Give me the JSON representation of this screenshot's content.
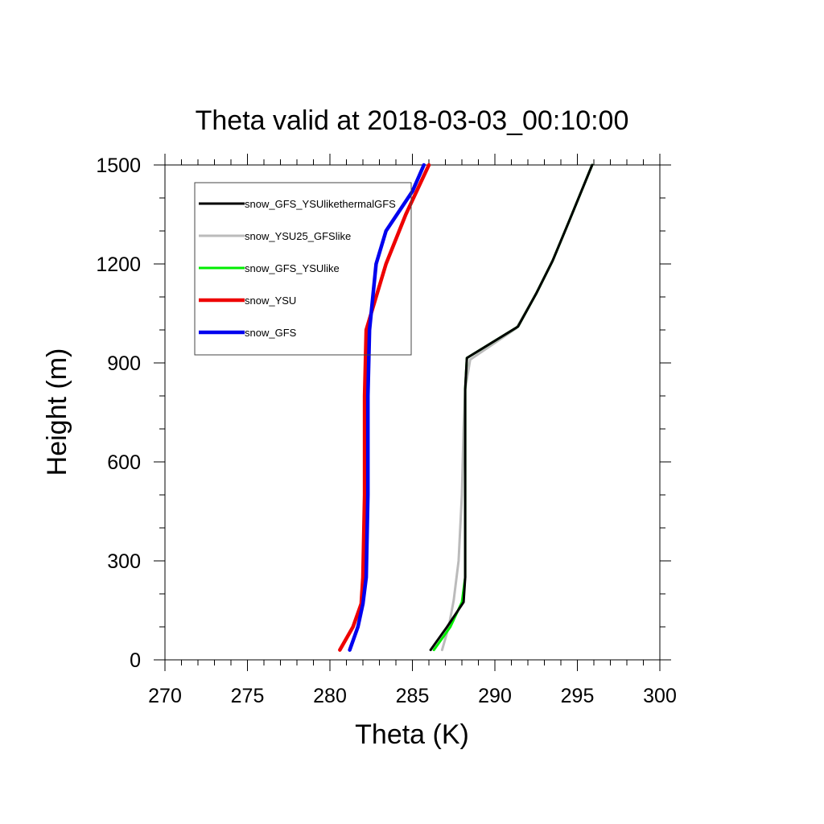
{
  "chart_data": {
    "type": "line",
    "title": "Theta valid at 2018-03-03_00:10:00",
    "xlabel": "Theta (K)",
    "ylabel": "Height (m)",
    "xlim": [
      270,
      300
    ],
    "ylim": [
      0,
      1500
    ],
    "xticks": [
      270,
      275,
      280,
      285,
      290,
      295,
      300
    ],
    "yticks": [
      0,
      300,
      600,
      900,
      1200,
      1500
    ],
    "xtick_labels": [
      "270",
      "275",
      "280",
      "285",
      "290",
      "295",
      "300"
    ],
    "ytick_labels": [
      "0",
      "300",
      "600",
      "900",
      "1200",
      "1500"
    ],
    "grid": false,
    "legend_position": "top-left",
    "series": [
      {
        "name": "snow_GFS_YSUlikethermalGFS",
        "color": "#000000",
        "x": [
          286.1,
          287.1,
          288.1,
          288.2,
          288.2,
          288.2,
          288.3,
          291.4,
          292.5,
          293.5,
          294.5,
          295.9
        ],
        "y": [
          30,
          100,
          175,
          250,
          500,
          820,
          915,
          1010,
          1110,
          1210,
          1330,
          1500
        ]
      },
      {
        "name": "snow_YSU25_GFSlike",
        "color": "#bbbbbb",
        "x": [
          286.8,
          287.2,
          287.5,
          287.8,
          288.0,
          288.1,
          288.2,
          288.5,
          291.3,
          292.5,
          293.5,
          294.5,
          295.9
        ],
        "y": [
          30,
          100,
          180,
          300,
          500,
          700,
          820,
          910,
          1005,
          1110,
          1210,
          1330,
          1500
        ]
      },
      {
        "name": "snow_GFS_YSUlike",
        "color": "#00ee00",
        "x": [
          286.3,
          287.3,
          288.0,
          288.2,
          288.2,
          288.2,
          288.3,
          291.4,
          292.5,
          293.5,
          294.5,
          295.9
        ],
        "y": [
          30,
          100,
          175,
          250,
          500,
          820,
          915,
          1010,
          1110,
          1210,
          1330,
          1500
        ]
      },
      {
        "name": "snow_YSU",
        "color": "#ee0000",
        "x": [
          280.6,
          281.4,
          281.9,
          282.0,
          282.1,
          282.1,
          282.2,
          283.4,
          284.6,
          286.0
        ],
        "y": [
          30,
          100,
          170,
          250,
          500,
          800,
          1000,
          1200,
          1350,
          1500
        ]
      },
      {
        "name": "snow_GFS",
        "color": "#0000ee",
        "x": [
          281.2,
          281.7,
          282.0,
          282.2,
          282.3,
          282.3,
          282.4,
          282.8,
          283.4,
          285.0,
          285.7
        ],
        "y": [
          30,
          100,
          170,
          250,
          500,
          800,
          1000,
          1200,
          1300,
          1420,
          1500
        ]
      }
    ]
  }
}
